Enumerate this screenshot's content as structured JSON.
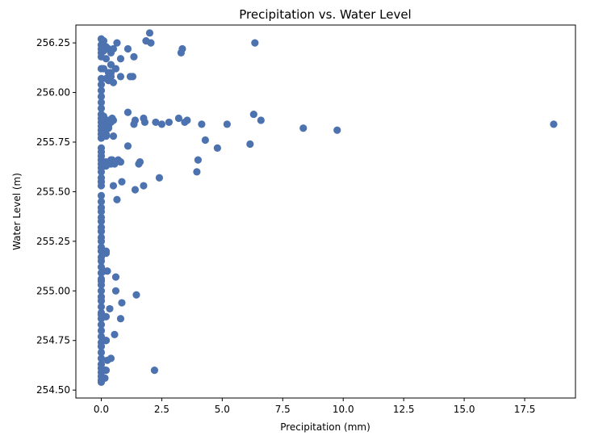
{
  "chart_data": {
    "type": "scatter",
    "title": "Precipitation vs. Water Level",
    "xlabel": "Precipitation (mm)",
    "ylabel": "Water Level (m)",
    "xlim": [
      -1.05,
      19.6
    ],
    "ylim": [
      254.46,
      256.34
    ],
    "xticks": [
      0,
      2.5,
      5,
      7.5,
      10,
      12.5,
      15,
      17.5
    ],
    "xtick_labels": [
      "0.0",
      "2.5",
      "5.0",
      "7.5",
      "10.0",
      "12.5",
      "15.0",
      "17.5"
    ],
    "yticks": [
      254.5,
      254.75,
      255,
      255.25,
      255.5,
      255.75,
      256,
      256.25
    ],
    "ytick_labels": [
      "254.50",
      "254.75",
      "255.00",
      "255.25",
      "255.50",
      "255.75",
      "256.00",
      "256.25"
    ],
    "grid": false,
    "marker_color": "#4c72b0",
    "series": [
      {
        "x": [
          0.0,
          0.0,
          0.0,
          0.0,
          0.0,
          0.0,
          0.0,
          0.0,
          0.0,
          0.0,
          0.0,
          0.0,
          0.0,
          0.0,
          0.0,
          0.0,
          0.0,
          0.0,
          0.0,
          0.0,
          0.0,
          0.0,
          0.0,
          0.0,
          0.0,
          0.0,
          0.0,
          0.0,
          0.0,
          0.0,
          0.0,
          0.0,
          0.0,
          0.0,
          0.0,
          0.0,
          0.0,
          0.0,
          0.0,
          0.0,
          0.0,
          0.0,
          0.0,
          0.0,
          0.0,
          0.0,
          0.0,
          0.0,
          0.0,
          0.0,
          0.0,
          0.0,
          0.0,
          0.0,
          0.0,
          0.0,
          0.0,
          0.0,
          0.0,
          0.0,
          0.0,
          0.0,
          0.0,
          0.0,
          0.0,
          0.0,
          0.0,
          0.0,
          0.1,
          0.1,
          0.2,
          0.2,
          0.1,
          0.3,
          0.2,
          0.1,
          0.1,
          0.3,
          0.1,
          0.2,
          0.2,
          0.1,
          0.2,
          0.1,
          0.2,
          0.2,
          0.3,
          0.4,
          0.5,
          0.4,
          0.6,
          0.4,
          0.3,
          0.4,
          0.5,
          0.4,
          0.3,
          0.5,
          0.35,
          0.25,
          0.45,
          0.15,
          0.2,
          0.65,
          1.1,
          1.35,
          0.8,
          0.8,
          1.2,
          1.3,
          0.4,
          0.4,
          0.5,
          0.8,
          0.2,
          0.3,
          1.1,
          1.4,
          1.35,
          1.75,
          1.8,
          2.25,
          2.5,
          2.8,
          3.2,
          3.45,
          3.55,
          4.15,
          1.1,
          2.0,
          1.85,
          2.05,
          3.3,
          3.35,
          6.35,
          1.6,
          1.55,
          0.7,
          0.35,
          0.45,
          0.55,
          0.85,
          0.5,
          1.4,
          1.75,
          2.4,
          0.65,
          4.3,
          4.8,
          6.15,
          4.0,
          3.95,
          5.2,
          6.3,
          6.6,
          8.35,
          9.75,
          18.7,
          0.6,
          0.25,
          0.2,
          0.6,
          1.45,
          0.35,
          0.85,
          0.8,
          0.55,
          0.2,
          0.4,
          0.25,
          0.15,
          2.2,
          0.15,
          0.2
        ],
        "y": [
          256.27,
          256.24,
          256.22,
          256.2,
          256.18,
          256.12,
          256.07,
          256.04,
          256.01,
          255.98,
          255.95,
          255.92,
          255.89,
          255.87,
          255.85,
          255.83,
          255.81,
          255.79,
          255.77,
          255.72,
          255.7,
          255.68,
          255.66,
          255.64,
          255.62,
          255.6,
          255.57,
          255.55,
          255.53,
          255.48,
          255.45,
          255.42,
          255.4,
          255.37,
          255.35,
          255.32,
          255.3,
          255.27,
          255.25,
          255.22,
          255.2,
          255.17,
          255.15,
          255.12,
          255.09,
          255.06,
          255.03,
          255.0,
          254.97,
          254.95,
          254.92,
          254.89,
          254.86,
          254.83,
          254.8,
          254.77,
          254.74,
          254.72,
          254.69,
          254.66,
          254.63,
          254.61,
          254.59,
          254.57,
          254.55,
          254.54,
          255.05,
          254.88,
          256.26,
          256.21,
          256.23,
          256.17,
          256.12,
          256.1,
          256.07,
          255.88,
          255.85,
          255.83,
          255.8,
          255.78,
          255.65,
          255.63,
          255.2,
          255.1,
          254.75,
          254.6,
          256.22,
          256.2,
          256.22,
          256.14,
          256.12,
          256.08,
          256.06,
          256.1,
          256.05,
          255.85,
          255.82,
          255.78,
          255.86,
          255.84,
          255.87,
          255.83,
          255.79,
          256.25,
          256.22,
          256.18,
          256.17,
          256.08,
          256.08,
          256.08,
          255.66,
          255.64,
          255.86,
          255.65,
          255.63,
          255.86,
          255.9,
          255.86,
          255.84,
          255.87,
          255.85,
          255.85,
          255.84,
          255.85,
          255.87,
          255.85,
          255.86,
          255.84,
          255.73,
          256.3,
          256.26,
          256.25,
          256.2,
          256.22,
          256.25,
          255.65,
          255.64,
          255.66,
          255.65,
          255.66,
          255.64,
          255.55,
          255.53,
          255.51,
          255.53,
          255.57,
          255.46,
          255.76,
          255.72,
          255.74,
          255.66,
          255.6,
          255.84,
          255.89,
          255.86,
          255.82,
          255.81,
          255.84,
          255.07,
          255.1,
          255.19,
          255.0,
          254.98,
          254.91,
          254.94,
          254.86,
          254.78,
          254.75,
          254.66,
          254.65,
          254.6,
          254.6,
          254.56,
          254.87
        ]
      }
    ]
  }
}
